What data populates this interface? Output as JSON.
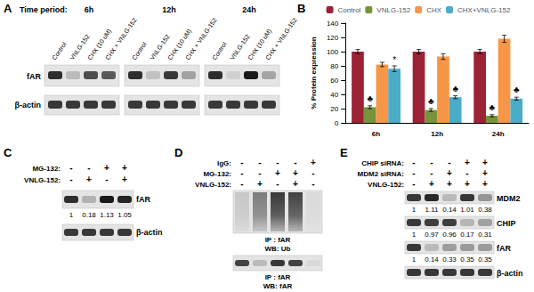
{
  "panel_a": {
    "letter": "A",
    "time_label": "Time period:",
    "times": [
      "6h",
      "12h",
      "24h"
    ],
    "lanes": [
      "Control",
      "VNLG-152",
      "CHX (10 uM)",
      "CHX + VNLG-152"
    ],
    "rows": [
      "fAR",
      "β-actin"
    ]
  },
  "panel_b": {
    "letter": "B"
  },
  "chart_data": {
    "type": "bar",
    "ylabel": "% Protein expression",
    "categories": [
      "6h",
      "12h",
      "24h"
    ],
    "series": [
      {
        "name": "Control",
        "color": "#9b2335",
        "values": [
          100,
          100,
          100
        ],
        "errors": [
          3,
          3,
          3
        ]
      },
      {
        "name": "VNLG-152",
        "color": "#77933c",
        "values": [
          22,
          18,
          10
        ],
        "errors": [
          2,
          2,
          1.5
        ]
      },
      {
        "name": "CHX",
        "color": "#f79646",
        "values": [
          82,
          93,
          118
        ],
        "errors": [
          3,
          4,
          5
        ]
      },
      {
        "name": "CHX+VNLG-152",
        "color": "#4bacc6",
        "values": [
          76,
          36,
          34
        ],
        "errors": [
          4,
          2,
          2
        ]
      }
    ],
    "ylim": [
      0,
      140
    ],
    "yticks": [
      0,
      20,
      40,
      60,
      80,
      100,
      120,
      140
    ],
    "grid": false,
    "legend": "top",
    "annotations": [
      {
        "category": "6h",
        "series": "VNLG-152",
        "label": "♣"
      },
      {
        "category": "6h",
        "series": "CHX+VNLG-152",
        "label": "*"
      },
      {
        "category": "12h",
        "series": "VNLG-152",
        "label": "♣"
      },
      {
        "category": "12h",
        "series": "CHX+VNLG-152",
        "label": "♣"
      },
      {
        "category": "24h",
        "series": "VNLG-152",
        "label": "♣"
      },
      {
        "category": "24h",
        "series": "CHX+VNLG-152",
        "label": "♣"
      }
    ]
  },
  "panel_c": {
    "letter": "C",
    "conditions": [
      {
        "label": "MG-132:",
        "signs": [
          "-",
          "-",
          "+",
          "+"
        ]
      },
      {
        "label": "VNLG-152:",
        "signs": [
          "-",
          "+",
          "-",
          "+"
        ]
      }
    ],
    "blots": [
      {
        "label": "fAR",
        "values": [
          1,
          0.18,
          1.13,
          1.05
        ]
      },
      {
        "label": "β-actin"
      }
    ]
  },
  "panel_d": {
    "letter": "D",
    "conditions": [
      {
        "label": "IgG:",
        "signs": [
          "-",
          "-",
          "-",
          "-",
          "+"
        ]
      },
      {
        "label": "MG-132:",
        "signs": [
          "-",
          "-",
          "+",
          "+",
          "-"
        ]
      },
      {
        "label": "VNLG-152:",
        "signs": [
          "-",
          "+",
          "-",
          "+",
          "-"
        ]
      }
    ],
    "blots": [
      {
        "label": [
          "IP : fAR",
          "WB: Ub"
        ]
      },
      {
        "label": [
          "IP : fAR",
          "WB: fAR"
        ]
      }
    ]
  },
  "panel_e": {
    "letter": "E",
    "conditions": [
      {
        "label": "CHIP siRNA:",
        "signs": [
          "-",
          "-",
          "-",
          "+",
          "+"
        ]
      },
      {
        "label": "MDM2 siRNA:",
        "signs": [
          "-",
          "-",
          "+",
          "-",
          "+"
        ]
      },
      {
        "label": "VNLG-152:",
        "signs": [
          "-",
          "+",
          "+",
          "+",
          "+"
        ]
      }
    ],
    "blots": [
      {
        "label": "MDM2",
        "values": [
          1,
          1.11,
          0.14,
          1.01,
          0.38
        ]
      },
      {
        "label": "CHIP",
        "values": [
          1,
          0.97,
          0.96,
          0.17,
          0.31
        ]
      },
      {
        "label": "fAR",
        "values": [
          1,
          0.14,
          0.33,
          0.35,
          0.35
        ]
      },
      {
        "label": "β-actin"
      }
    ]
  }
}
